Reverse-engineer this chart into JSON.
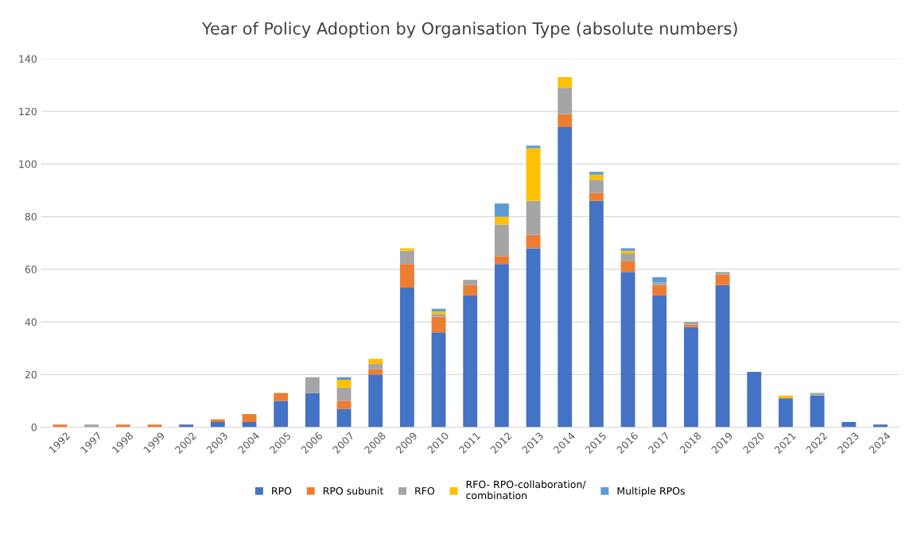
{
  "chart_data": {
    "type": "bar",
    "title": "Year of Policy Adoption by Organisation Type (absolute numbers)",
    "categories": [
      "1992",
      "1997",
      "1998",
      "1999",
      "2002",
      "2003",
      "2004",
      "2005",
      "2006",
      "2007",
      "2008",
      "2009",
      "2010",
      "2011",
      "2012",
      "2013",
      "2014",
      "2015",
      "2016",
      "2017",
      "2018",
      "2019",
      "2020",
      "2021",
      "2022",
      "2023",
      "2024"
    ],
    "stacked": true,
    "series": [
      {
        "name": "RPO",
        "color": "#4472c4",
        "values": [
          0,
          0,
          0,
          0,
          1,
          2,
          2,
          10,
          13,
          7,
          20,
          53,
          36,
          50,
          62,
          68,
          114,
          86,
          59,
          50,
          38,
          54,
          21,
          11,
          12,
          2,
          1
        ]
      },
      {
        "name": "RPO subunit",
        "color": "#ed7d31",
        "values": [
          1,
          0,
          1,
          1,
          0,
          1,
          3,
          3,
          0,
          3,
          2,
          9,
          6,
          4,
          3,
          5,
          5,
          3,
          4,
          4,
          1,
          4,
          0,
          0,
          0,
          0,
          0
        ]
      },
      {
        "name": "RFO",
        "color": "#a5a5a5",
        "values": [
          0,
          1,
          0,
          0,
          0,
          0,
          0,
          0,
          6,
          5,
          2,
          5,
          1,
          2,
          12,
          13,
          10,
          5,
          3,
          1,
          1,
          1,
          0,
          0,
          1,
          0,
          0
        ]
      },
      {
        "name": "RFO- RPO-collaboration/\ncombination",
        "color": "#ffc000",
        "values": [
          0,
          0,
          0,
          0,
          0,
          0,
          0,
          0,
          0,
          3,
          2,
          1,
          1,
          0,
          3,
          20,
          4,
          2,
          1,
          0,
          0,
          0,
          0,
          1,
          0,
          0,
          0
        ]
      },
      {
        "name": "Multiple RPOs",
        "color": "#5b9bd5",
        "values": [
          0,
          0,
          0,
          0,
          0,
          0,
          0,
          0,
          0,
          1,
          0,
          0,
          1,
          0,
          5,
          1,
          0,
          1,
          1,
          2,
          0,
          0,
          0,
          0,
          0,
          0,
          0
        ]
      }
    ],
    "ylim": [
      0,
      140
    ],
    "yticks": [
      0,
      20,
      40,
      60,
      80,
      100,
      120,
      140
    ],
    "grid": "y",
    "legend": "bottom"
  }
}
